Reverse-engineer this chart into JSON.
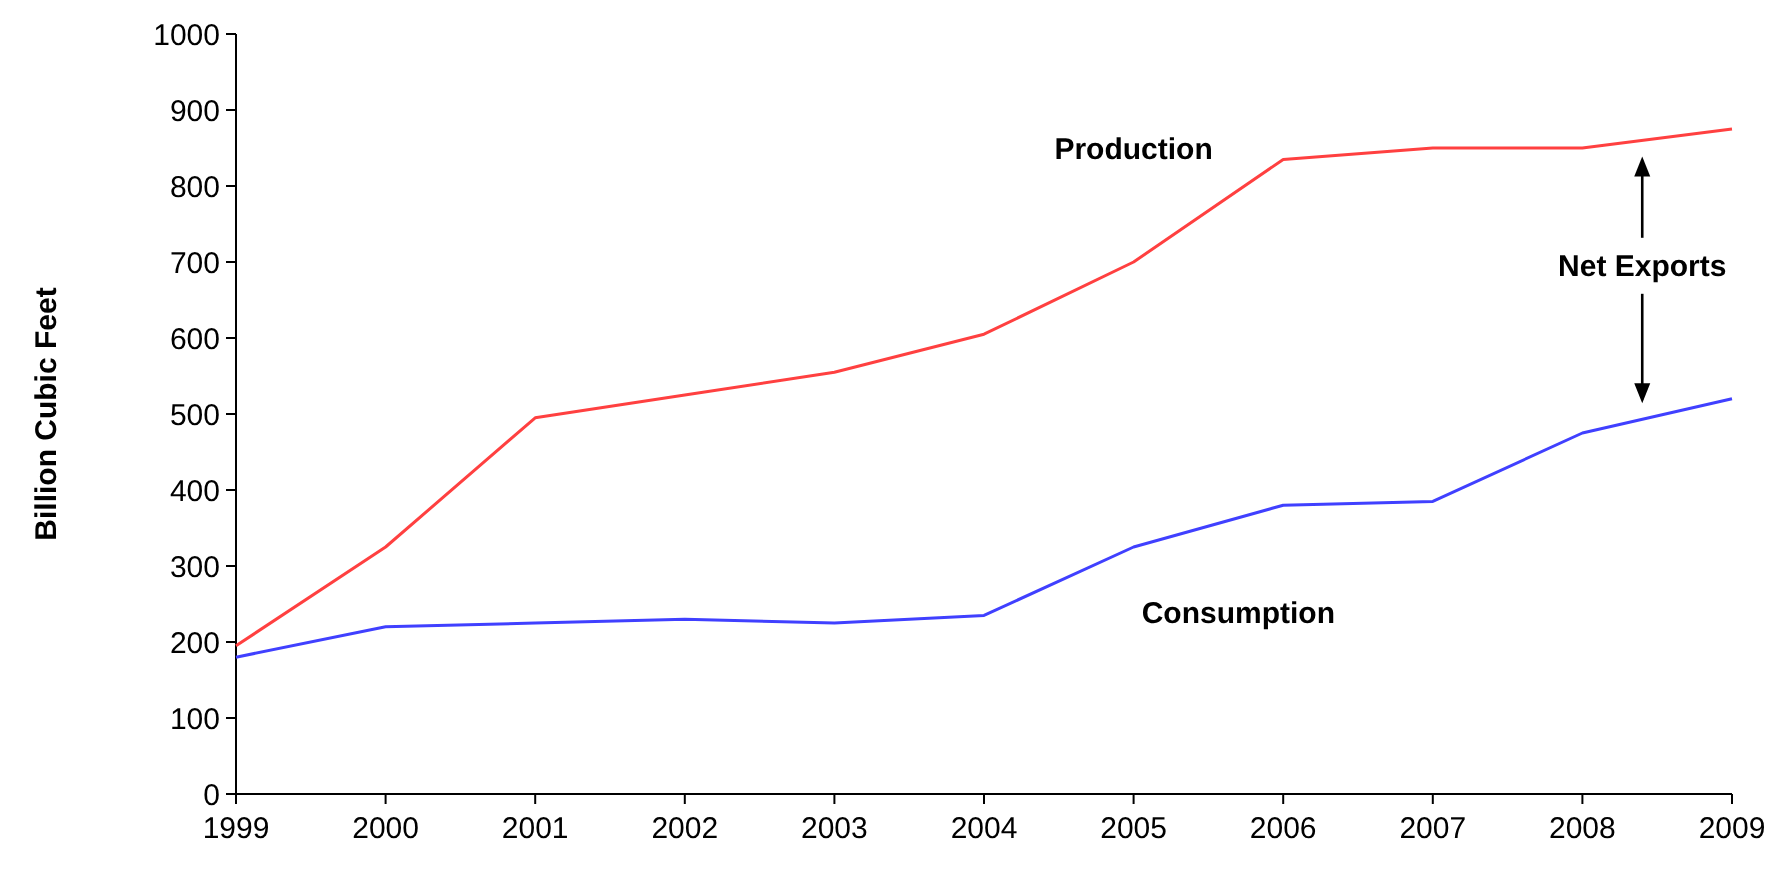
{
  "chart_data": {
    "type": "line",
    "ylabel": "Billion Cubic Feet",
    "x": [
      1999,
      2000,
      2001,
      2002,
      2003,
      2004,
      2005,
      2006,
      2007,
      2008,
      2009
    ],
    "series": [
      {
        "name": "Production",
        "color": "#ff4040",
        "values": [
          195,
          325,
          495,
          525,
          555,
          605,
          700,
          835,
          850,
          850,
          875
        ]
      },
      {
        "name": "Consumption",
        "color": "#4040ff",
        "values": [
          180,
          220,
          225,
          230,
          225,
          235,
          325,
          380,
          385,
          475,
          520
        ]
      }
    ],
    "xlim": [
      1999,
      2009
    ],
    "xticks": [
      1999,
      2000,
      2001,
      2002,
      2003,
      2004,
      2005,
      2006,
      2007,
      2008,
      2009
    ],
    "ylim": [
      0,
      1000
    ],
    "yticks": [
      0,
      100,
      200,
      300,
      400,
      500,
      600,
      700,
      800,
      900,
      1000
    ],
    "grid": false,
    "marker": "none",
    "line_style": "solid",
    "annotations": [
      "Net Exports"
    ]
  }
}
